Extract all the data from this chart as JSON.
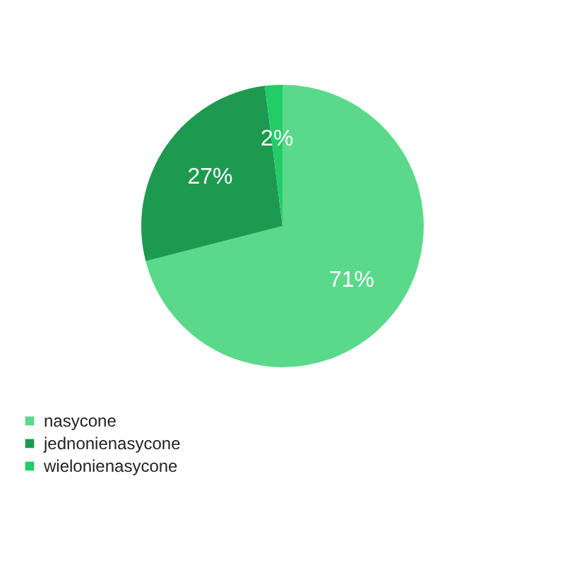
{
  "chart_data": {
    "type": "pie",
    "categories": [
      "nasycone",
      "jednonienasycone",
      "wielonienasycone"
    ],
    "values": [
      71,
      27,
      2
    ],
    "colors": [
      "#5ad98b",
      "#1e9a50",
      "#22cc66"
    ],
    "value_labels": [
      "71%",
      "27%",
      "2%"
    ],
    "legend": "bottom left"
  }
}
